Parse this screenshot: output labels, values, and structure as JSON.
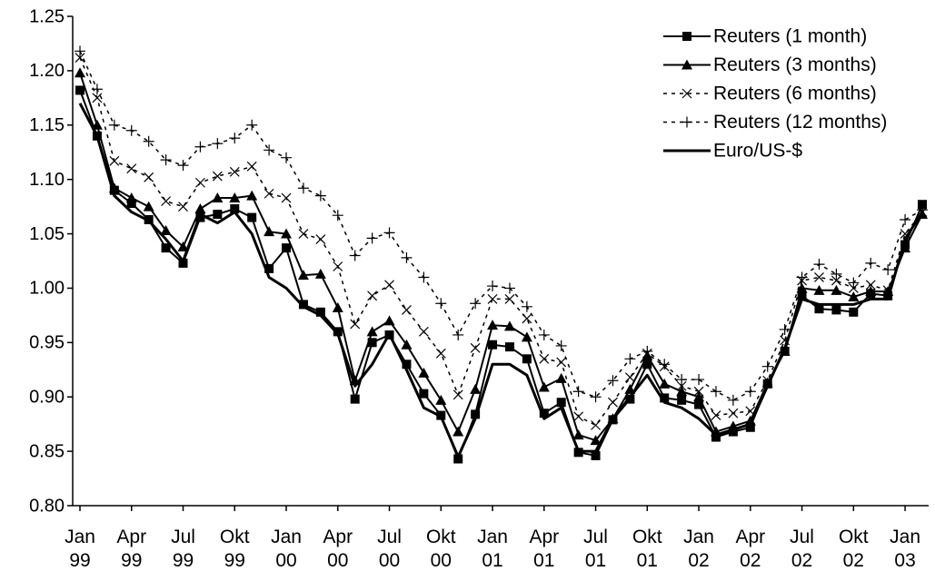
{
  "chart_data": {
    "type": "line",
    "categories": [
      "Jan 99",
      null,
      null,
      "Apr 99",
      null,
      null,
      "Jul 99",
      null,
      null,
      "Okt 99",
      null,
      null,
      "Jan 00",
      null,
      null,
      "Apr 00",
      null,
      null,
      "Jul 00",
      null,
      null,
      "Okt 00",
      null,
      null,
      "Jan 01",
      null,
      null,
      "Apr 01",
      null,
      null,
      "Jul 01",
      null,
      null,
      "Okt 01",
      null,
      null,
      "Jan 02",
      null,
      null,
      "Apr 02",
      null,
      null,
      "Jul 02",
      null,
      null,
      "Okt 02",
      null,
      null,
      "Jan 03",
      null
    ],
    "ylim": [
      0.8,
      1.25
    ],
    "yticks": [
      {
        "value": 0.8,
        "label": "0.80"
      },
      0.85,
      {
        "value": 0.9,
        "label": "0.90"
      },
      0.95,
      {
        "value": 1.0,
        "label": "1.00"
      },
      1.05,
      {
        "value": 1.1,
        "label": "1.10"
      },
      1.15,
      {
        "value": 1.2,
        "label": "1.20"
      },
      1.25
    ],
    "legend": "top-right",
    "series": [
      {
        "name": "Reuters (1 month)",
        "color": "#000000",
        "dash": "solid",
        "marker": "square",
        "values": [
          1.182,
          1.14,
          1.09,
          1.078,
          1.063,
          1.037,
          1.023,
          1.065,
          1.068,
          1.073,
          1.065,
          1.018,
          1.037,
          0.985,
          0.978,
          0.96,
          0.898,
          0.95,
          0.957,
          0.93,
          0.903,
          0.883,
          0.843,
          0.884,
          0.948,
          0.946,
          0.935,
          0.885,
          0.895,
          0.849,
          0.846,
          0.879,
          0.898,
          0.93,
          0.899,
          0.897,
          0.893,
          0.863,
          0.868,
          0.872,
          0.912,
          0.942,
          0.993,
          0.981,
          0.98,
          0.978,
          0.995,
          0.993,
          1.04,
          1.077
        ]
      },
      {
        "name": "Reuters (3 months)",
        "color": "#000000",
        "dash": "solid",
        "marker": "triangle",
        "values": [
          1.198,
          1.15,
          1.092,
          1.083,
          1.075,
          1.053,
          1.038,
          1.073,
          1.083,
          1.083,
          1.085,
          1.052,
          1.05,
          1.012,
          1.013,
          0.982,
          0.915,
          0.96,
          0.97,
          0.948,
          0.922,
          0.897,
          0.868,
          0.907,
          0.966,
          0.965,
          0.955,
          0.909,
          0.917,
          0.865,
          0.86,
          0.88,
          0.907,
          0.938,
          0.912,
          0.905,
          0.9,
          0.868,
          0.873,
          0.878,
          0.913,
          0.942,
          1.0,
          0.998,
          0.998,
          0.992,
          0.997,
          0.997,
          1.037,
          1.068
        ]
      },
      {
        "name": "Reuters (6 months)",
        "color": "#000000",
        "dash": "dashed",
        "marker": "x",
        "values": [
          1.212,
          1.175,
          1.117,
          1.11,
          1.102,
          1.08,
          1.075,
          1.097,
          1.103,
          1.107,
          1.112,
          1.087,
          1.083,
          1.05,
          1.045,
          1.02,
          0.967,
          0.993,
          1.003,
          0.98,
          0.96,
          0.94,
          0.902,
          0.945,
          0.99,
          0.99,
          0.972,
          0.935,
          0.932,
          0.882,
          0.874,
          0.895,
          0.918,
          0.94,
          0.928,
          0.91,
          0.905,
          0.883,
          0.885,
          0.887,
          0.915,
          0.952,
          1.007,
          1.01,
          1.007,
          1.0,
          1.003,
          0.998,
          1.05,
          1.07
        ]
      },
      {
        "name": "Reuters (12 months)",
        "color": "#000000",
        "dash": "dashed",
        "marker": "plus",
        "values": [
          1.218,
          1.183,
          1.15,
          1.145,
          1.135,
          1.118,
          1.113,
          1.13,
          1.133,
          1.138,
          1.15,
          1.127,
          1.12,
          1.092,
          1.085,
          1.067,
          1.03,
          1.046,
          1.051,
          1.028,
          1.01,
          0.986,
          0.957,
          0.986,
          1.002,
          1.0,
          0.983,
          0.957,
          0.947,
          0.905,
          0.9,
          0.915,
          0.935,
          0.942,
          0.93,
          0.916,
          0.916,
          0.905,
          0.897,
          0.905,
          0.928,
          0.962,
          1.01,
          1.022,
          1.013,
          1.005,
          1.023,
          1.017,
          1.063,
          1.072
        ]
      },
      {
        "name": "Euro/US-$",
        "color": "#000000",
        "dash": "solid",
        "marker": "none",
        "width": 3,
        "values": [
          1.17,
          1.14,
          1.085,
          1.07,
          1.062,
          1.045,
          1.025,
          1.068,
          1.06,
          1.07,
          1.05,
          1.01,
          1.0,
          0.983,
          0.975,
          0.958,
          0.91,
          0.93,
          0.958,
          0.925,
          0.89,
          0.882,
          0.845,
          0.88,
          0.93,
          0.93,
          0.92,
          0.88,
          0.89,
          0.85,
          0.85,
          0.88,
          0.9,
          0.92,
          0.895,
          0.89,
          0.88,
          0.865,
          0.87,
          0.875,
          0.91,
          0.945,
          0.99,
          0.985,
          0.985,
          0.985,
          0.99,
          0.99,
          1.045,
          1.07
        ]
      }
    ]
  }
}
